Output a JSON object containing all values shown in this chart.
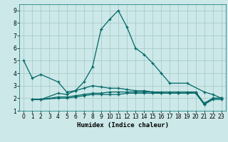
{
  "xlabel": "Humidex (Indice chaleur)",
  "xlim": [
    -0.5,
    23.5
  ],
  "ylim": [
    1,
    9.5
  ],
  "yticks": [
    1,
    2,
    3,
    4,
    5,
    6,
    7,
    8,
    9
  ],
  "xticks": [
    0,
    1,
    2,
    3,
    4,
    5,
    6,
    7,
    8,
    9,
    10,
    11,
    12,
    13,
    14,
    15,
    16,
    17,
    18,
    19,
    20,
    21,
    22,
    23
  ],
  "bg_color": "#cce8e8",
  "grid_color": "#aacccc",
  "line_color": "#006666",
  "line1_x": [
    0,
    1,
    2,
    4,
    5,
    6,
    7,
    8,
    9,
    10,
    11,
    12,
    13,
    14,
    15,
    16,
    17,
    19,
    21,
    22,
    23
  ],
  "line1_y": [
    5.0,
    3.6,
    3.9,
    3.3,
    2.5,
    2.6,
    3.3,
    4.5,
    7.5,
    8.3,
    9.0,
    7.7,
    6.0,
    5.5,
    4.8,
    4.0,
    3.2,
    3.2,
    2.5,
    2.3,
    2.0
  ],
  "line2_x": [
    1,
    2,
    4,
    5,
    6,
    7,
    8,
    9,
    10,
    11,
    12,
    13,
    14,
    15,
    16,
    17,
    18,
    19,
    20,
    21,
    22,
    23
  ],
  "line2_y": [
    1.9,
    1.9,
    2.4,
    2.3,
    2.6,
    2.8,
    3.0,
    2.9,
    2.8,
    2.8,
    2.7,
    2.6,
    2.6,
    2.5,
    2.4,
    2.4,
    2.4,
    2.4,
    2.5,
    1.6,
    2.0,
    2.0
  ],
  "line3_x": [
    1,
    2,
    4,
    5,
    6,
    7,
    8,
    9,
    10,
    11,
    12,
    13,
    14,
    15,
    16,
    17,
    18,
    19,
    20,
    21,
    22,
    23
  ],
  "line3_y": [
    1.9,
    1.9,
    2.1,
    2.1,
    2.2,
    2.3,
    2.4,
    2.4,
    2.5,
    2.5,
    2.5,
    2.5,
    2.5,
    2.5,
    2.5,
    2.5,
    2.5,
    2.5,
    2.5,
    1.5,
    2.0,
    2.0
  ],
  "line4_x": [
    1,
    2,
    4,
    5,
    6,
    7,
    8,
    9,
    10,
    11,
    12,
    13,
    14,
    15,
    16,
    17,
    18,
    19,
    20,
    21,
    22,
    23
  ],
  "line4_y": [
    1.9,
    1.9,
    2.0,
    2.0,
    2.1,
    2.2,
    2.3,
    2.3,
    2.3,
    2.3,
    2.4,
    2.4,
    2.4,
    2.4,
    2.4,
    2.4,
    2.4,
    2.4,
    2.4,
    1.5,
    1.9,
    1.9
  ]
}
